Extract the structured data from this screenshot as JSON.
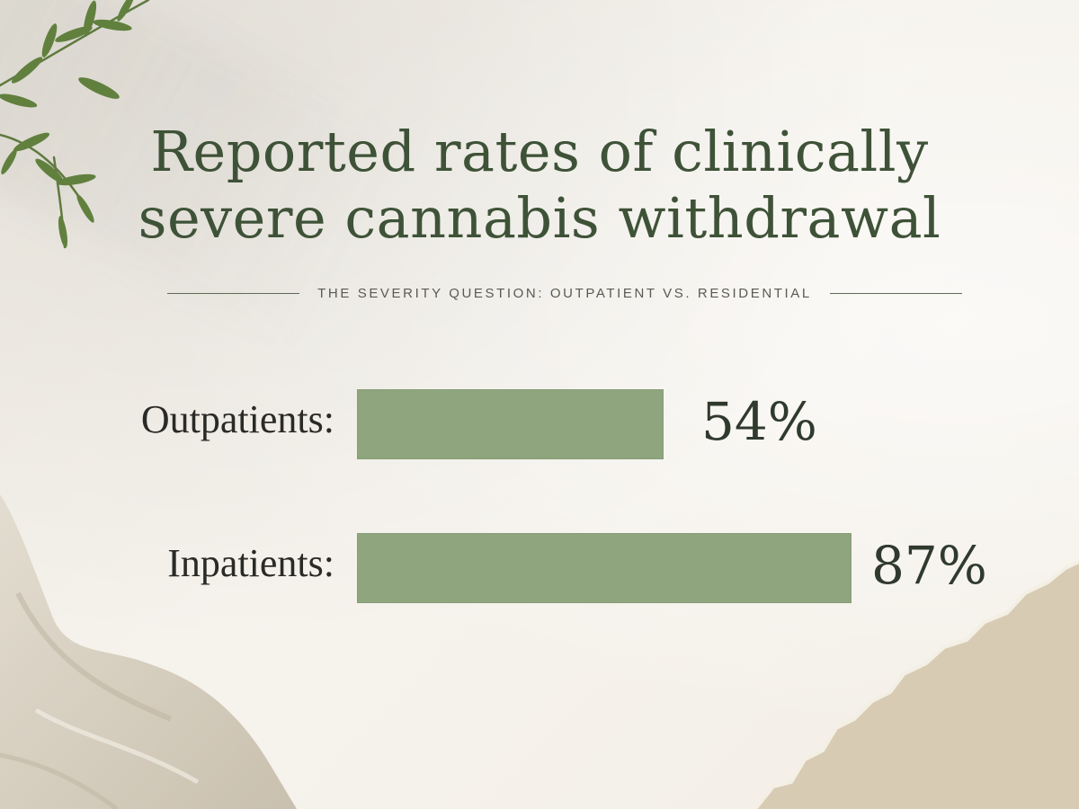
{
  "chart_data": {
    "type": "bar",
    "orientation": "horizontal",
    "title_lines": [
      "Reported rates of clinically",
      "severe cannabis withdrawal"
    ],
    "subtitle": "THE SEVERITY QUESTION: OUTPATIENT VS. RESIDENTIAL",
    "categories": [
      "Outpatients:",
      "Inpatients:"
    ],
    "values": [
      54,
      87
    ],
    "value_labels": [
      "54%",
      "87%"
    ],
    "unit": "%",
    "xlim": [
      0,
      100
    ],
    "grid": false,
    "legend": "none"
  },
  "colors": {
    "background": "#f4f1ea",
    "title": "#3e5237",
    "bar": "#8ea57d",
    "label": "#2a2a26"
  },
  "icons": [
    "olive-branch-icon",
    "linen-cloth-icon",
    "torn-kraft-paper-icon"
  ]
}
